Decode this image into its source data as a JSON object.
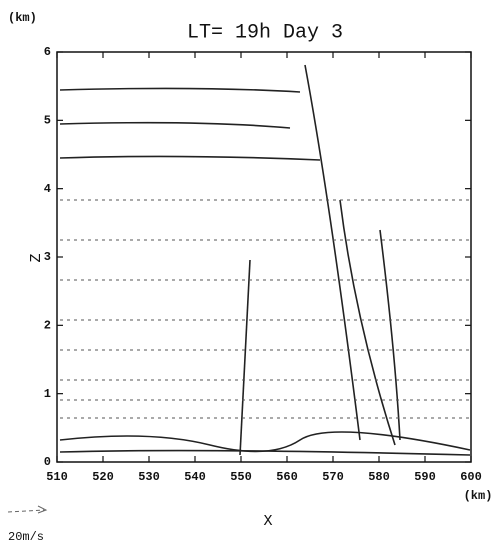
{
  "chart_data": {
    "type": "vector",
    "title": "LT= 19h Day 3",
    "xlabel": "X",
    "ylabel": "Z",
    "x_unit": "(km)",
    "y_unit": "(km)",
    "reference_vector_label": "20m/s",
    "xlim": [
      510,
      600
    ],
    "xticks": [
      510,
      520,
      530,
      540,
      550,
      560,
      570,
      580,
      590,
      600
    ],
    "ylim": [
      0,
      6
    ],
    "yticks": [
      0,
      1,
      2,
      3,
      4,
      5,
      6
    ]
  }
}
